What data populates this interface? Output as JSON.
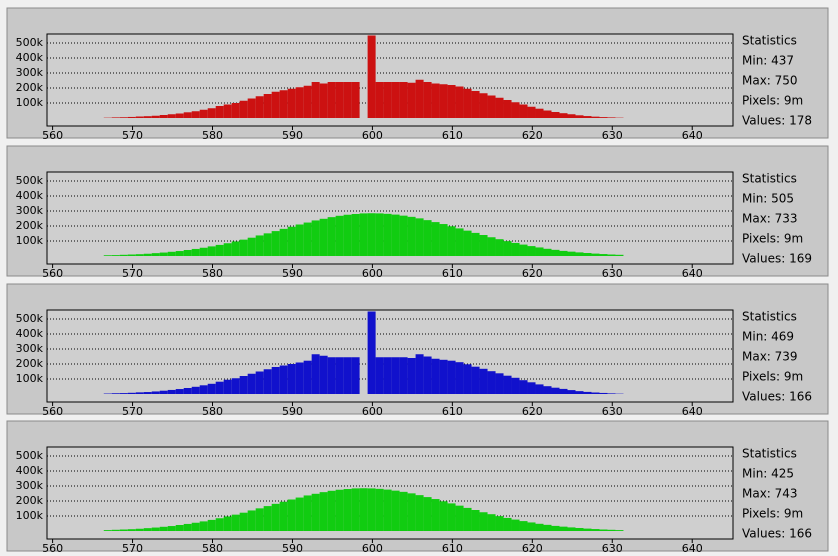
{
  "chart_data": [
    {
      "type": "histogram",
      "color": "#cc1111",
      "grid": true,
      "xlim": [
        559.3,
        645.1
      ],
      "ylim": [
        0,
        560000
      ],
      "xticks": [
        560,
        570,
        580,
        590,
        600,
        610,
        620,
        630,
        640
      ],
      "yticks": [
        {
          "value": 100000,
          "label": "100k"
        },
        {
          "value": 200000,
          "label": "200k"
        },
        {
          "value": 300000,
          "label": "300k"
        },
        {
          "value": 400000,
          "label": "400k"
        },
        {
          "value": 500000,
          "label": "500k"
        }
      ],
      "bins": [
        566.4,
        567.4,
        568.4,
        569.4,
        570.4,
        571.4,
        572.4,
        573.4,
        574.4,
        575.4,
        576.4,
        577.4,
        578.4,
        579.4,
        580.4,
        581.4,
        582.4,
        583.4,
        584.4,
        585.4,
        586.4,
        587.4,
        588.4,
        589.4,
        590.4,
        591.4,
        592.4,
        593.4,
        594.4,
        595.4,
        596.4,
        597.4,
        598.4,
        599.4,
        600.4,
        601.4,
        602.4,
        603.4,
        604.4,
        605.4,
        606.4,
        607.4,
        608.4,
        609.4,
        610.4,
        611.4,
        612.4,
        613.4,
        614.4,
        615.4,
        616.4,
        617.4,
        618.4,
        619.4,
        620.4,
        621.4,
        622.4,
        623.4,
        624.4,
        625.4,
        626.4,
        627.4,
        628.4,
        629.4,
        630.4,
        631.4
      ],
      "values": [
        2000,
        4000,
        5000,
        7000,
        10000,
        12000,
        15000,
        20000,
        25000,
        30000,
        38000,
        45000,
        55000,
        65000,
        80000,
        90000,
        100000,
        115000,
        130000,
        145000,
        160000,
        175000,
        185000,
        195000,
        205000,
        215000,
        240000,
        230000,
        240000,
        240000,
        240000,
        240000,
        0,
        550000,
        240000,
        240000,
        240000,
        240000,
        235000,
        255000,
        240000,
        230000,
        225000,
        220000,
        210000,
        195000,
        180000,
        165000,
        150000,
        135000,
        120000,
        105000,
        90000,
        75000,
        62000,
        50000,
        40000,
        32000,
        25000,
        18000,
        13000,
        9000,
        6000,
        4000,
        2000
      ],
      "stats": [
        "Statistics",
        "Min: 437",
        "Max: 750",
        "Pixels: 9m",
        "Values: 178"
      ]
    },
    {
      "type": "histogram",
      "color": "#11cc11",
      "grid": true,
      "xlim": [
        559.3,
        645.1
      ],
      "ylim": [
        0,
        560000
      ],
      "xticks": [
        560,
        570,
        580,
        590,
        600,
        610,
        620,
        630,
        640
      ],
      "yticks": [
        {
          "value": 100000,
          "label": "100k"
        },
        {
          "value": 200000,
          "label": "200k"
        },
        {
          "value": 300000,
          "label": "300k"
        },
        {
          "value": 400000,
          "label": "400k"
        },
        {
          "value": 500000,
          "label": "500k"
        }
      ],
      "bins": [
        566.4,
        567.4,
        568.4,
        569.4,
        570.4,
        571.4,
        572.4,
        573.4,
        574.4,
        575.4,
        576.4,
        577.4,
        578.4,
        579.4,
        580.4,
        581.4,
        582.4,
        583.4,
        584.4,
        585.4,
        586.4,
        587.4,
        588.4,
        589.4,
        590.4,
        591.4,
        592.4,
        593.4,
        594.4,
        595.4,
        596.4,
        597.4,
        598.4,
        599.4,
        600.4,
        601.4,
        602.4,
        603.4,
        604.4,
        605.4,
        606.4,
        607.4,
        608.4,
        609.4,
        610.4,
        611.4,
        612.4,
        613.4,
        614.4,
        615.4,
        616.4,
        617.4,
        618.4,
        619.4,
        620.4,
        621.4,
        622.4,
        623.4,
        624.4,
        625.4,
        626.4,
        627.4,
        628.4,
        629.4,
        630.4,
        631.4
      ],
      "values": [
        5000,
        6000,
        8000,
        10000,
        12000,
        15000,
        19000,
        23000,
        28000,
        33000,
        40000,
        47000,
        55000,
        64000,
        74000,
        85000,
        97000,
        109000,
        122000,
        137000,
        151000,
        166000,
        181000,
        195000,
        210000,
        223000,
        237000,
        248000,
        259000,
        268000,
        275000,
        280000,
        284000,
        285000,
        284000,
        281000,
        276000,
        269000,
        261000,
        251000,
        239000,
        226000,
        213000,
        198000,
        184000,
        169000,
        154000,
        140000,
        125000,
        112000,
        99000,
        87000,
        76000,
        66000,
        57000,
        48000,
        41000,
        34000,
        29000,
        24000,
        20000,
        16000,
        13000,
        10000,
        8000
      ],
      "stats": [
        "Statistics",
        "Min: 505",
        "Max: 733",
        "Pixels: 9m",
        "Values: 169"
      ]
    },
    {
      "type": "histogram",
      "color": "#1111cc",
      "grid": true,
      "xlim": [
        559.3,
        645.1
      ],
      "ylim": [
        0,
        560000
      ],
      "xticks": [
        560,
        570,
        580,
        590,
        600,
        610,
        620,
        630,
        640
      ],
      "yticks": [
        {
          "value": 100000,
          "label": "100k"
        },
        {
          "value": 200000,
          "label": "200k"
        },
        {
          "value": 300000,
          "label": "300k"
        },
        {
          "value": 400000,
          "label": "400k"
        },
        {
          "value": 500000,
          "label": "500k"
        }
      ],
      "bins": [
        566.4,
        567.4,
        568.4,
        569.4,
        570.4,
        571.4,
        572.4,
        573.4,
        574.4,
        575.4,
        576.4,
        577.4,
        578.4,
        579.4,
        580.4,
        581.4,
        582.4,
        583.4,
        584.4,
        585.4,
        586.4,
        587.4,
        588.4,
        589.4,
        590.4,
        591.4,
        592.4,
        593.4,
        594.4,
        595.4,
        596.4,
        597.4,
        598.4,
        599.4,
        600.4,
        601.4,
        602.4,
        603.4,
        604.4,
        605.4,
        606.4,
        607.4,
        608.4,
        609.4,
        610.4,
        611.4,
        612.4,
        613.4,
        614.4,
        615.4,
        616.4,
        617.4,
        618.4,
        619.4,
        620.4,
        621.4,
        622.4,
        623.4,
        624.4,
        625.4,
        626.4,
        627.4,
        628.4,
        629.4,
        630.4,
        631.4
      ],
      "values": [
        3000,
        5000,
        6000,
        8000,
        11000,
        13000,
        17000,
        22000,
        27000,
        33000,
        40000,
        48000,
        58000,
        68000,
        82000,
        95000,
        105000,
        120000,
        135000,
        150000,
        165000,
        180000,
        190000,
        200000,
        210000,
        222000,
        265000,
        255000,
        245000,
        245000,
        245000,
        245000,
        0,
        550000,
        245000,
        245000,
        245000,
        245000,
        240000,
        265000,
        250000,
        235000,
        228000,
        222000,
        212000,
        198000,
        182000,
        168000,
        152000,
        138000,
        122000,
        108000,
        92000,
        78000,
        64000,
        52000,
        42000,
        34000,
        26000,
        19000,
        14000,
        10000,
        7000,
        4000,
        2000
      ],
      "stats": [
        "Statistics",
        "Min: 469",
        "Max: 739",
        "Pixels: 9m",
        "Values: 166"
      ]
    },
    {
      "type": "histogram",
      "color": "#11cc11",
      "grid": true,
      "xlim": [
        559.3,
        645.1
      ],
      "ylim": [
        0,
        560000
      ],
      "xticks": [
        560,
        570,
        580,
        590,
        600,
        610,
        620,
        630,
        640
      ],
      "yticks": [
        {
          "value": 100000,
          "label": "100k"
        },
        {
          "value": 200000,
          "label": "200k"
        },
        {
          "value": 300000,
          "label": "300k"
        },
        {
          "value": 400000,
          "label": "400k"
        },
        {
          "value": 500000,
          "label": "500k"
        }
      ],
      "bins": [
        566.4,
        567.4,
        568.4,
        569.4,
        570.4,
        571.4,
        572.4,
        573.4,
        574.4,
        575.4,
        576.4,
        577.4,
        578.4,
        579.4,
        580.4,
        581.4,
        582.4,
        583.4,
        584.4,
        585.4,
        586.4,
        587.4,
        588.4,
        589.4,
        590.4,
        591.4,
        592.4,
        593.4,
        594.4,
        595.4,
        596.4,
        597.4,
        598.4,
        599.4,
        600.4,
        601.4,
        602.4,
        603.4,
        604.4,
        605.4,
        606.4,
        607.4,
        608.4,
        609.4,
        610.4,
        611.4,
        612.4,
        613.4,
        614.4,
        615.4,
        616.4,
        617.4,
        618.4,
        619.4,
        620.4,
        621.4,
        622.4,
        623.4,
        624.4,
        625.4,
        626.4,
        627.4,
        628.4,
        629.4,
        630.4,
        631.4
      ],
      "values": [
        6000,
        8000,
        10000,
        12000,
        15000,
        19000,
        23000,
        28000,
        33000,
        40000,
        47000,
        55000,
        64000,
        74000,
        85000,
        97000,
        109000,
        122000,
        137000,
        151000,
        166000,
        181000,
        195000,
        210000,
        223000,
        237000,
        248000,
        259000,
        268000,
        275000,
        280000,
        284000,
        285000,
        284000,
        281000,
        276000,
        269000,
        261000,
        251000,
        239000,
        226000,
        213000,
        198000,
        184000,
        169000,
        154000,
        140000,
        125000,
        112000,
        99000,
        87000,
        76000,
        66000,
        57000,
        48000,
        41000,
        34000,
        29000,
        24000,
        20000,
        16000,
        13000,
        10000,
        8000,
        6000
      ],
      "stats": [
        "Statistics",
        "Min: 425",
        "Max: 743",
        "Pixels: 9m",
        "Values: 166"
      ]
    }
  ]
}
